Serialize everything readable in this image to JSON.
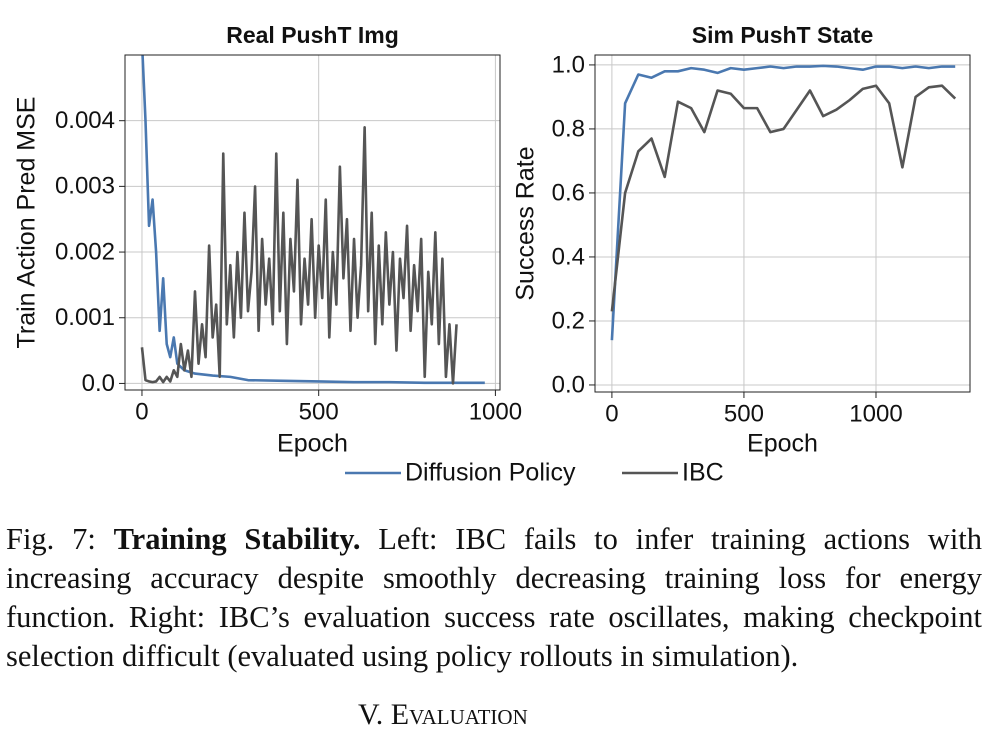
{
  "chart_data": [
    {
      "type": "line",
      "title": "Real PushT Img",
      "xlabel": "Epoch",
      "ylabel": "Train Action Pred MSE",
      "xlim": [
        -48,
        1013
      ],
      "ylim": [
        -0.0001,
        0.005
      ],
      "xticks": [
        0,
        500,
        1000
      ],
      "yticks": [
        {
          "value": 0,
          "label": "0.0"
        },
        0.001,
        0.002,
        0.003,
        0.004
      ],
      "grid": true,
      "series": [
        {
          "name": "Diffusion Policy",
          "color": "#4a78b0",
          "x": [
            0,
            10,
            20,
            30,
            40,
            50,
            60,
            70,
            80,
            90,
            100,
            120,
            150,
            200,
            250,
            300,
            400,
            500,
            600,
            700,
            800,
            900,
            970
          ],
          "values": [
            0.0052,
            0.004,
            0.0024,
            0.0028,
            0.002,
            0.0008,
            0.0016,
            0.0006,
            0.0004,
            0.0007,
            0.0003,
            0.0002,
            0.00015,
            0.00012,
            0.0001,
            5e-05,
            4e-05,
            3e-05,
            2e-05,
            2e-05,
            1e-05,
            1e-05,
            1e-05
          ]
        },
        {
          "name": "IBC",
          "color": "#555555",
          "x": [
            0,
            10,
            20,
            30,
            40,
            50,
            60,
            70,
            80,
            90,
            100,
            110,
            120,
            130,
            140,
            150,
            160,
            170,
            180,
            190,
            200,
            210,
            220,
            230,
            240,
            250,
            260,
            270,
            280,
            290,
            300,
            310,
            320,
            330,
            340,
            350,
            360,
            370,
            380,
            390,
            400,
            410,
            420,
            430,
            440,
            450,
            460,
            470,
            480,
            490,
            500,
            510,
            520,
            530,
            540,
            550,
            560,
            570,
            580,
            590,
            600,
            610,
            620,
            630,
            640,
            650,
            660,
            670,
            680,
            690,
            700,
            710,
            720,
            730,
            740,
            750,
            760,
            770,
            780,
            790,
            800,
            810,
            820,
            830,
            840,
            850,
            860,
            870,
            880,
            890
          ],
          "values": [
            0.00055,
            5e-05,
            3e-05,
            2e-05,
            3e-05,
            0.0001,
            2e-05,
            0.0001,
            3e-05,
            0.0002,
            0.0001,
            0.0006,
            0.0002,
            0.0005,
            0.0001,
            0.0014,
            0.0003,
            0.0009,
            0.0004,
            0.0021,
            0.0007,
            0.0012,
            0.0001,
            0.0035,
            0.0009,
            0.0018,
            0.0007,
            0.002,
            0.001,
            0.0026,
            0.0011,
            0.0017,
            0.003,
            0.0008,
            0.0022,
            0.0012,
            0.0019,
            0.0009,
            0.0035,
            0.0011,
            0.0026,
            0.0006,
            0.0022,
            0.0014,
            0.0031,
            0.0009,
            0.0019,
            0.0012,
            0.0025,
            0.001,
            0.0021,
            0.0013,
            0.0028,
            0.0007,
            0.002,
            0.0012,
            0.0033,
            0.0016,
            0.0025,
            0.0008,
            0.0022,
            0.001,
            0.0018,
            0.0039,
            0.0011,
            0.0026,
            0.0006,
            0.0021,
            0.0009,
            0.0023,
            0.0012,
            0.002,
            0.0005,
            0.0019,
            0.0013,
            0.0024,
            0.0008,
            0.0018,
            0.0011,
            0.0022,
            0.0001,
            0.0017,
            0.0009,
            0.0023,
            0.0006,
            0.0019,
            0.0001,
            0.0009,
            0,
            0.0009
          ]
        }
      ]
    },
    {
      "type": "line",
      "title": "Sim PushT State",
      "xlabel": "Epoch",
      "ylabel": "Success Rate",
      "xlim": [
        -64,
        1356
      ],
      "ylim": [
        -0.022,
        1.031
      ],
      "xticks": [
        0,
        500,
        1000
      ],
      "yticks": [
        {
          "value": 0,
          "label": "0.0"
        },
        0.2,
        0.4,
        0.6,
        0.8,
        {
          "value": 1,
          "label": "1.0"
        }
      ],
      "grid": true,
      "series": [
        {
          "name": "Diffusion Policy",
          "color": "#4a78b0",
          "x": [
            0,
            50,
            100,
            150,
            200,
            250,
            300,
            350,
            400,
            450,
            500,
            550,
            600,
            650,
            700,
            750,
            800,
            850,
            900,
            950,
            1000,
            1050,
            1100,
            1150,
            1200,
            1250,
            1300
          ],
          "values": [
            0.14,
            0.88,
            0.97,
            0.96,
            0.98,
            0.98,
            0.99,
            0.985,
            0.975,
            0.99,
            0.985,
            0.99,
            0.995,
            0.99,
            0.995,
            0.995,
            0.997,
            0.995,
            0.99,
            0.985,
            0.995,
            0.995,
            0.99,
            0.995,
            0.99,
            0.995,
            0.995
          ]
        },
        {
          "name": "IBC",
          "color": "#555555",
          "x": [
            0,
            50,
            100,
            150,
            200,
            250,
            300,
            350,
            400,
            450,
            500,
            550,
            600,
            650,
            700,
            750,
            800,
            850,
            900,
            950,
            1000,
            1050,
            1100,
            1150,
            1200,
            1250,
            1300
          ],
          "values": [
            0.23,
            0.6,
            0.73,
            0.77,
            0.65,
            0.885,
            0.865,
            0.79,
            0.92,
            0.91,
            0.865,
            0.865,
            0.79,
            0.8,
            0.86,
            0.92,
            0.84,
            0.86,
            0.89,
            0.925,
            0.935,
            0.88,
            0.68,
            0.9,
            0.93,
            0.935,
            0.895
          ]
        }
      ]
    }
  ],
  "caption": {
    "label": "Fig. 7:",
    "bold": "Training Stability.",
    "text": "Left: IBC fails to infer training actions with increasing accuracy despite smoothly decreasing training loss for energy function. Right: IBC’s evaluation success rate oscillates, making checkpoint selection difficult (evaluated using policy rollouts in simulation)."
  },
  "section_heading": "V. Evaluation"
}
